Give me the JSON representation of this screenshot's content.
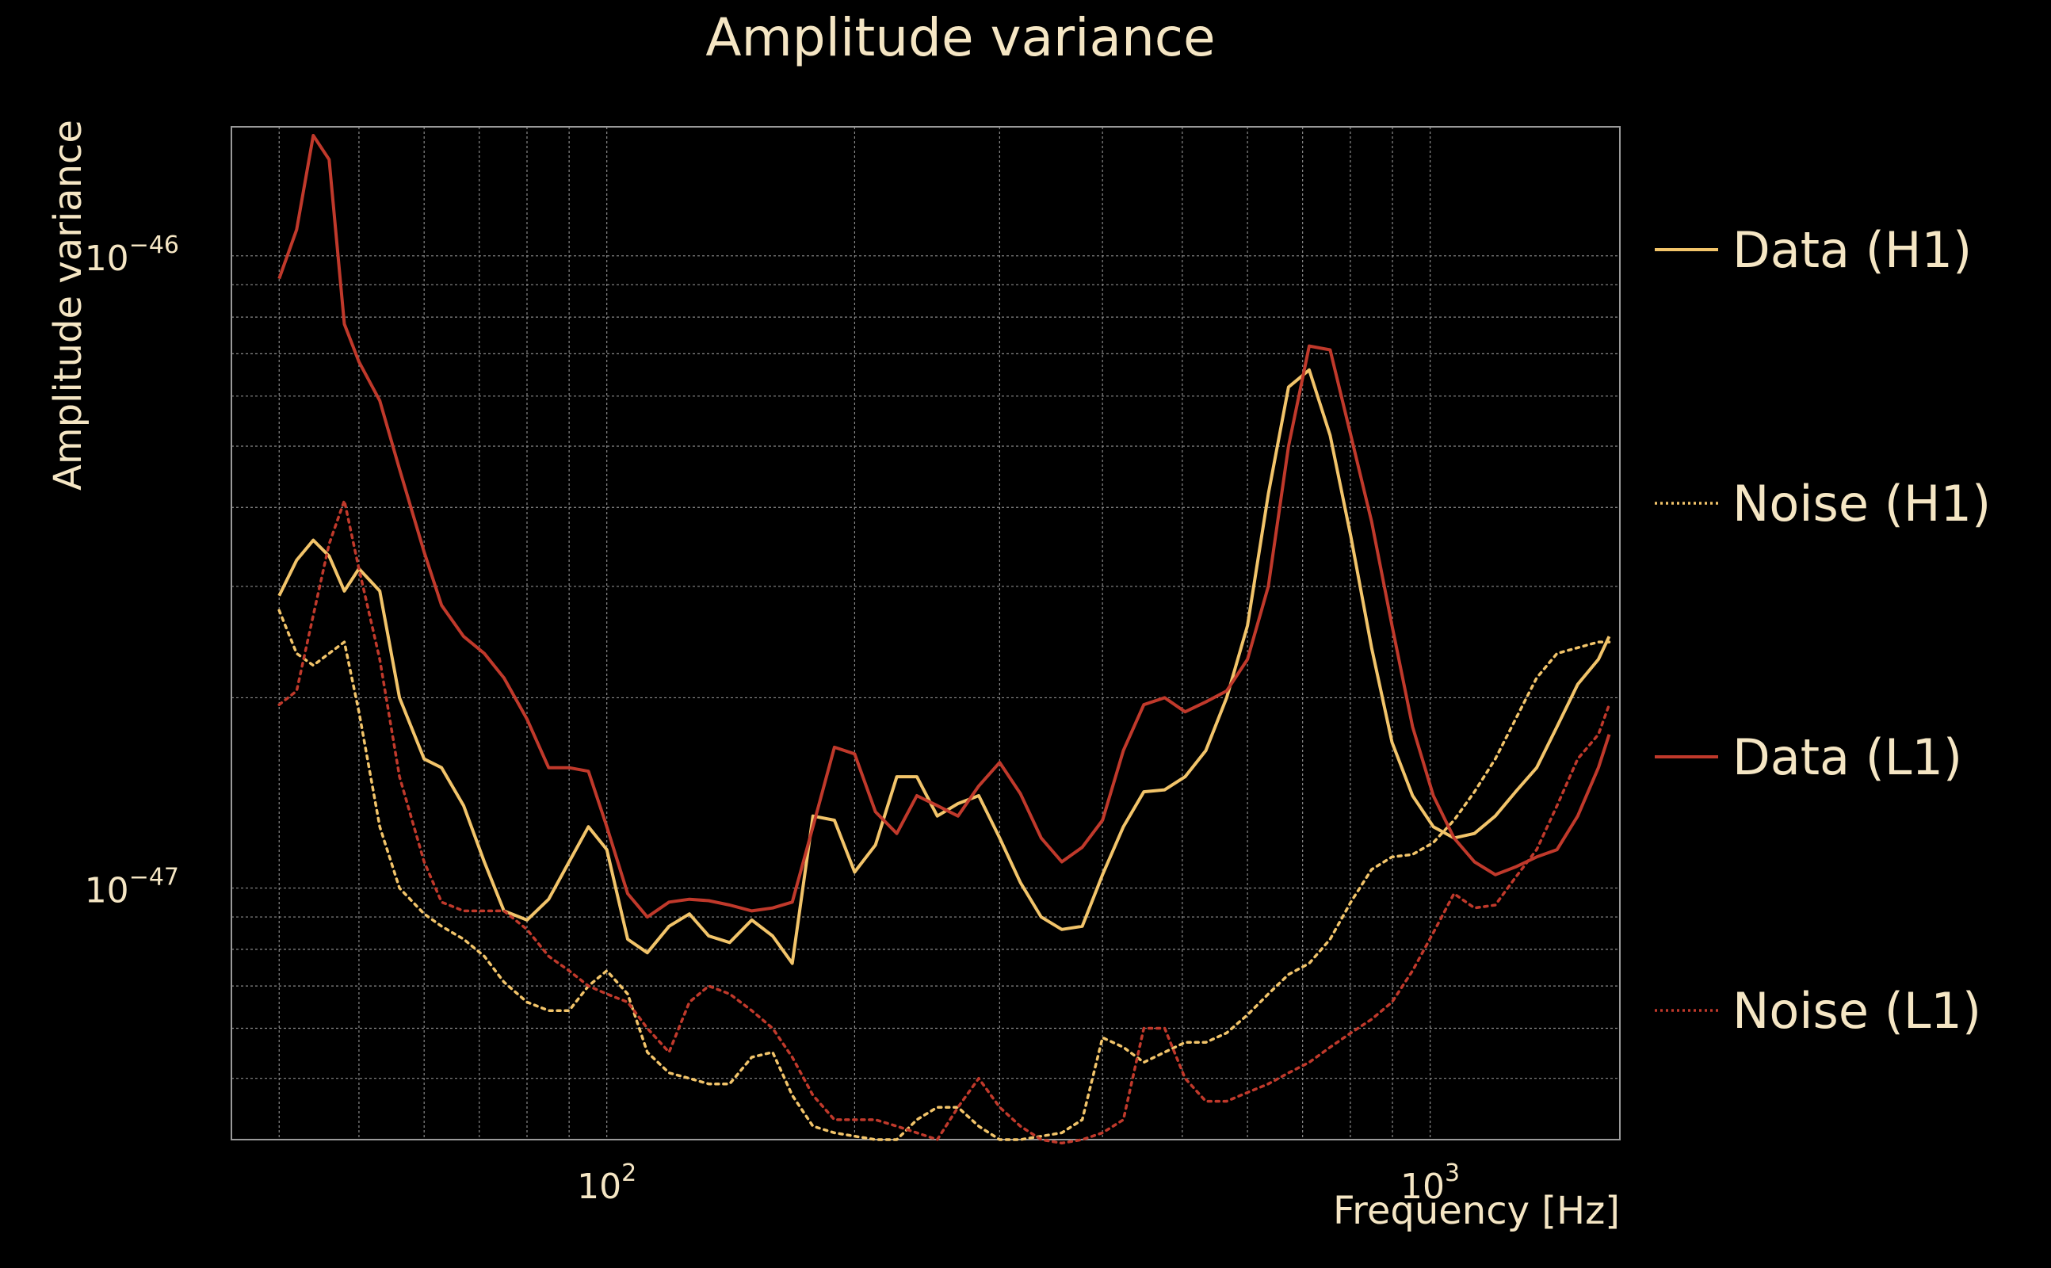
{
  "chart_data": {
    "type": "line",
    "title": "Amplitude variance",
    "xlabel": "Frequency [Hz]",
    "ylabel": "Amplitude variance",
    "xscale": "log",
    "yscale": "log",
    "xlim": [
      35,
      1700
    ],
    "ylim": [
      4e-48,
      1.6e-46
    ],
    "grid": true,
    "legend_placement": "right",
    "x_ticks": [
      {
        "value": 100,
        "base": "10",
        "exp": "2"
      },
      {
        "value": 1000,
        "base": "10",
        "exp": "3"
      }
    ],
    "y_ticks": [
      {
        "value": 1e-46,
        "base": "10",
        "exp": "−46"
      },
      {
        "value": 1e-47,
        "base": "10",
        "exp": "−47"
      }
    ],
    "x": [
      40,
      42,
      44,
      46,
      48,
      50,
      53,
      56,
      60,
      63,
      67,
      71,
      75,
      80,
      85,
      90,
      95,
      100,
      106,
      112,
      119,
      126,
      133,
      141,
      150,
      159,
      168,
      178,
      189,
      200,
      212,
      225,
      238,
      252,
      267,
      283,
      300,
      318,
      337,
      357,
      378,
      400,
      424,
      449,
      476,
      504,
      534,
      566,
      600,
      636,
      673,
      713,
      756,
      801,
      849,
      899,
      952,
      1009,
      1069,
      1132,
      1200,
      1270,
      1347,
      1426,
      1511,
      1601,
      1650
    ],
    "series": [
      {
        "name": "Data (H1)",
        "style": "solid",
        "color": "#f2c46a",
        "values": [
          2.9e-47,
          3.3e-47,
          3.55e-47,
          3.35e-47,
          2.95e-47,
          3.2e-47,
          2.95e-47,
          2e-47,
          1.6e-47,
          1.55e-47,
          1.35e-47,
          1.1e-47,
          9.2e-48,
          8.9e-48,
          9.6e-48,
          1.1e-47,
          1.25e-47,
          1.15e-47,
          8.3e-48,
          7.9e-48,
          8.7e-48,
          9.1e-48,
          8.4e-48,
          8.2e-48,
          8.9e-48,
          8.4e-48,
          7.6e-48,
          1.3e-47,
          1.28e-47,
          1.06e-47,
          1.17e-47,
          1.5e-47,
          1.5e-47,
          1.3e-47,
          1.36e-47,
          1.4e-47,
          1.2e-47,
          1.02e-47,
          9e-48,
          8.6e-48,
          8.7e-48,
          1.05e-47,
          1.25e-47,
          1.42e-47,
          1.43e-47,
          1.5e-47,
          1.65e-47,
          2e-47,
          2.6e-47,
          4.2e-47,
          6.2e-47,
          6.6e-47,
          5.2e-47,
          3.6e-47,
          2.4e-47,
          1.7e-47,
          1.4e-47,
          1.25e-47,
          1.2e-47,
          1.22e-47,
          1.3e-47,
          1.42e-47,
          1.55e-47,
          1.8e-47,
          2.1e-47,
          2.3e-47,
          2.5e-47
        ]
      },
      {
        "name": "Noise (H1)",
        "style": "dotted",
        "color": "#f2c46a",
        "values": [
          2.75e-47,
          2.35e-47,
          2.25e-47,
          2.35e-47,
          2.45e-47,
          1.9e-47,
          1.25e-47,
          1e-47,
          9.1e-48,
          8.7e-48,
          8.3e-48,
          7.8e-48,
          7.1e-48,
          6.6e-48,
          6.4e-48,
          6.4e-48,
          7e-48,
          7.4e-48,
          6.8e-48,
          5.5e-48,
          5.1e-48,
          5e-48,
          4.9e-48,
          4.9e-48,
          5.4e-48,
          5.5e-48,
          4.7e-48,
          4.2e-48,
          4.1e-48,
          4.05e-48,
          4e-48,
          4e-48,
          4.3e-48,
          4.5e-48,
          4.5e-48,
          4.2e-48,
          4e-48,
          4e-48,
          4.05e-48,
          4.1e-48,
          4.3e-48,
          5.8e-48,
          5.6e-48,
          5.3e-48,
          5.5e-48,
          5.7e-48,
          5.7e-48,
          5.9e-48,
          6.3e-48,
          6.8e-48,
          7.3e-48,
          7.6e-48,
          8.3e-48,
          9.5e-48,
          1.07e-47,
          1.12e-47,
          1.13e-47,
          1.18e-47,
          1.28e-47,
          1.42e-47,
          1.6e-47,
          1.85e-47,
          2.15e-47,
          2.35e-47,
          2.4e-47,
          2.45e-47,
          2.45e-47
        ]
      },
      {
        "name": "Data (L1)",
        "style": "solid",
        "color": "#c0392b",
        "values": [
          9.2e-47,
          1.1e-46,
          1.55e-46,
          1.42e-46,
          7.8e-47,
          6.8e-47,
          5.9e-47,
          4.6e-47,
          3.4e-47,
          2.8e-47,
          2.5e-47,
          2.35e-47,
          2.15e-47,
          1.85e-47,
          1.55e-47,
          1.55e-47,
          1.53e-47,
          1.25e-47,
          9.8e-48,
          9e-48,
          9.5e-48,
          9.6e-48,
          9.55e-48,
          9.4e-48,
          9.2e-48,
          9.3e-48,
          9.5e-48,
          1.25e-47,
          1.67e-47,
          1.63e-47,
          1.32e-47,
          1.22e-47,
          1.4e-47,
          1.35e-47,
          1.3e-47,
          1.45e-47,
          1.58e-47,
          1.41e-47,
          1.2e-47,
          1.1e-47,
          1.16e-47,
          1.28e-47,
          1.65e-47,
          1.95e-47,
          2e-47,
          1.9e-47,
          1.97e-47,
          2.05e-47,
          2.3e-47,
          3e-47,
          5e-47,
          7.2e-47,
          7.1e-47,
          5.2e-47,
          3.8e-47,
          2.6e-47,
          1.8e-47,
          1.4e-47,
          1.2e-47,
          1.1e-47,
          1.05e-47,
          1.08e-47,
          1.12e-47,
          1.15e-47,
          1.3e-47,
          1.55e-47,
          1.75e-47
        ]
      },
      {
        "name": "Noise (L1)",
        "style": "dotted",
        "color": "#c0392b",
        "values": [
          1.95e-47,
          2.05e-47,
          2.7e-47,
          3.5e-47,
          4.1e-47,
          3.2e-47,
          2.3e-47,
          1.5e-47,
          1.1e-47,
          9.5e-48,
          9.2e-48,
          9.2e-48,
          9.2e-48,
          8.6e-48,
          7.8e-48,
          7.4e-48,
          7e-48,
          6.8e-48,
          6.6e-48,
          6e-48,
          5.5e-48,
          6.6e-48,
          7e-48,
          6.8e-48,
          6.4e-48,
          6e-48,
          5.4e-48,
          4.7e-48,
          4.3e-48,
          4.3e-48,
          4.3e-48,
          4.2e-48,
          4.1e-48,
          4e-48,
          4.5e-48,
          5e-48,
          4.5e-48,
          4.2e-48,
          4e-48,
          3.95e-48,
          4e-48,
          4.1e-48,
          4.3e-48,
          6e-48,
          6e-48,
          5e-48,
          4.6e-48,
          4.6e-48,
          4.75e-48,
          4.9e-48,
          5.1e-48,
          5.3e-48,
          5.6e-48,
          5.9e-48,
          6.2e-48,
          6.6e-48,
          7.4e-48,
          8.5e-48,
          9.8e-48,
          9.3e-48,
          9.4e-48,
          1.04e-47,
          1.15e-47,
          1.35e-47,
          1.6e-47,
          1.75e-47,
          1.95e-47
        ]
      }
    ]
  }
}
